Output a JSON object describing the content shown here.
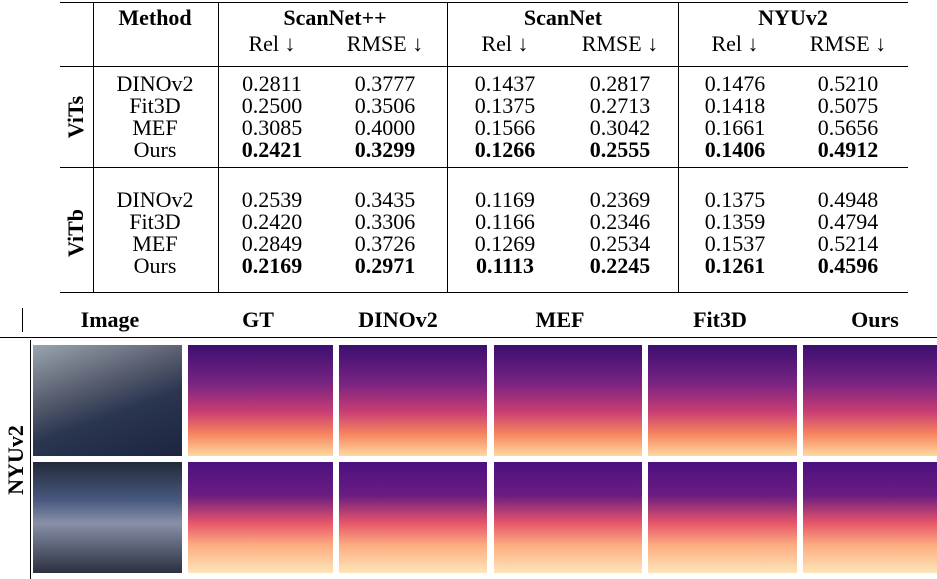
{
  "table": {
    "headers": {
      "method": "Method",
      "datasets": [
        "ScanNet++",
        "ScanNet",
        "NYUv2"
      ],
      "metrics": [
        "Rel ↓",
        "RMSE ↓"
      ]
    },
    "groups": [
      {
        "label": "ViTs",
        "rows": [
          [
            "DINOv2",
            "0.2811",
            "0.3777",
            "0.1437",
            "0.2817",
            "0.1476",
            "0.5210"
          ],
          [
            "Fit3D",
            "0.2500",
            "0.3506",
            "0.1375",
            "0.2713",
            "0.1418",
            "0.5075"
          ],
          [
            "MEF",
            "0.3085",
            "0.4000",
            "0.1566",
            "0.3042",
            "0.1661",
            "0.5656"
          ],
          [
            "Ours",
            "0.2421",
            "0.3299",
            "0.1266",
            "0.2555",
            "0.1406",
            "0.4912"
          ]
        ]
      },
      {
        "label": "ViTb",
        "rows": [
          [
            "DINOv2",
            "0.2539",
            "0.3435",
            "0.1169",
            "0.2369",
            "0.1375",
            "0.4948"
          ],
          [
            "Fit3D",
            "0.2420",
            "0.3306",
            "0.1166",
            "0.2346",
            "0.1359",
            "0.4794"
          ],
          [
            "MEF",
            "0.2849",
            "0.3726",
            "0.1269",
            "0.2534",
            "0.1537",
            "0.5214"
          ],
          [
            "Ours",
            "0.2169",
            "0.2971",
            "0.1113",
            "0.2245",
            "0.1261",
            "0.4596"
          ]
        ]
      }
    ]
  },
  "figure": {
    "columns": [
      "Image",
      "GT",
      "DINOv2",
      "MEF",
      "Fit3D",
      "Ours"
    ],
    "row_label": "NYUv2"
  }
}
